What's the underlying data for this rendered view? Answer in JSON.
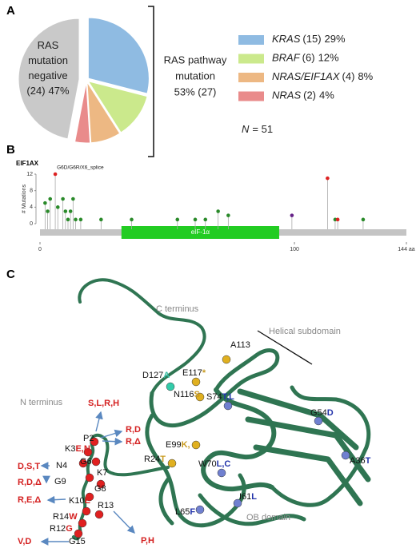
{
  "panel_labels": [
    "A",
    "B",
    "C"
  ],
  "chart_data": [
    {
      "type": "pie",
      "categories": [
        "KRAS",
        "BRAF",
        "NRAS/EIF1AX",
        "NRAS",
        "RAS mutation negative"
      ],
      "values": [
        29,
        12,
        8,
        4,
        47
      ],
      "value_labels": [
        "29%",
        "12%",
        "8%",
        "4%",
        "47%"
      ],
      "count_labels": [
        "(15)",
        "(6)",
        "(4)",
        "(2)",
        "(24)"
      ],
      "colors": [
        "#8fbbe2",
        "#cbe98c",
        "#edb883",
        "#e98b8b",
        "#c9c9c9"
      ],
      "bracket_label": [
        "RAS pathway",
        "mutation",
        "53% (27)"
      ],
      "n_label": {
        "symbol": "N",
        "text": "= 51"
      }
    },
    {
      "type": "lollipop",
      "title": "EIF1AX",
      "ylabel": "# Mutations",
      "annotation": "G6D/G6R/X6_splice",
      "x": [
        2,
        3,
        4,
        6,
        7,
        9,
        10,
        11,
        12,
        13,
        14,
        16,
        24,
        36,
        54,
        61,
        65,
        70,
        74,
        99,
        113,
        116,
        117,
        127
      ],
      "values": [
        5,
        3,
        6,
        12,
        4,
        6,
        3,
        1,
        3,
        6,
        1,
        1,
        1,
        1,
        1,
        1,
        1,
        3,
        2,
        2,
        11,
        1,
        1,
        1
      ],
      "colors": [
        "#2a8a2a",
        "#2a8a2a",
        "#2a8a2a",
        "#dd2222",
        "#2a8a2a",
        "#2a8a2a",
        "#2a8a2a",
        "#2a8a2a",
        "#2a8a2a",
        "#2a8a2a",
        "#2a8a2a",
        "#2a8a2a",
        "#2a8a2a",
        "#2a8a2a",
        "#2a8a2a",
        "#2a8a2a",
        "#2a8a2a",
        "#2a8a2a",
        "#2a8a2a",
        "#662288",
        "#dd2222",
        "#2a8a2a",
        "#dd2222",
        "#2a8a2a"
      ],
      "domain": {
        "label": "eIF-1α",
        "start": 32,
        "end": 94,
        "color": "#22cc22"
      },
      "xlim": [
        0,
        144
      ],
      "xticks": [
        0,
        100,
        {
          "value": 144,
          "label": "144 aa"
        }
      ],
      "ylim": [
        0,
        12
      ],
      "yticks": [
        0,
        4,
        8,
        12
      ]
    }
  ],
  "structure": {
    "regions": [
      "C terminus",
      "Helical subdomain",
      "N terminus",
      "OB domain"
    ],
    "variants": [
      {
        "residue": "D127",
        "change": "A"
      },
      {
        "residue": "E117",
        "change": "*"
      },
      {
        "residue": "A113"
      },
      {
        "residue": "N116",
        "change": "S"
      },
      {
        "residue": "S74",
        "change": "T,L"
      },
      {
        "residue": "G54",
        "change": "D"
      },
      {
        "residue": "E99",
        "change": "K,"
      },
      {
        "residue": "R24",
        "change": "T"
      },
      {
        "residue": "W70",
        "change": "L,C"
      },
      {
        "residue": "A36",
        "change": "T"
      },
      {
        "residue": "I61",
        "change": "L"
      },
      {
        "residue": "L65",
        "change": "F"
      },
      {
        "residue": "P2"
      },
      {
        "residue": "K3",
        "change": "E,N"
      },
      {
        "residue": "N4"
      },
      {
        "residue": "G6"
      },
      {
        "residue": "K7"
      },
      {
        "residue": "G9"
      },
      {
        "residue": "G8"
      },
      {
        "residue": "K10",
        "change": "E"
      },
      {
        "residue": "R13"
      },
      {
        "residue": "R14",
        "change": "W"
      },
      {
        "residue": "R12",
        "change": "G"
      },
      {
        "residue": "G15"
      }
    ],
    "n_terminal_changes": [
      "S,L,R,H",
      "R,D",
      "R,Δ",
      "D,S,T",
      "R,D,Δ",
      "R,E,Δ",
      "P,H",
      "V,D"
    ]
  }
}
